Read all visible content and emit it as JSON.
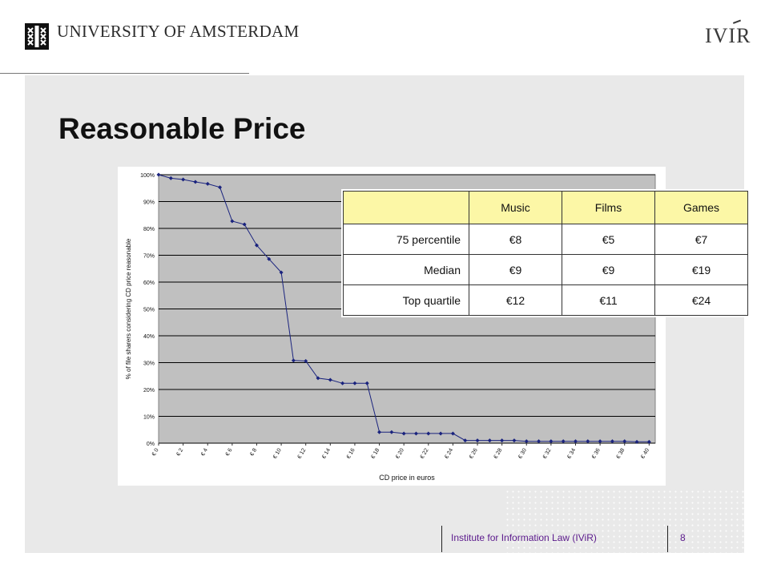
{
  "header": {
    "university_name": "UNIVERSITY OF AMSTERDAM",
    "institute_logo": "IVIR"
  },
  "slide": {
    "title": "Reasonable Price"
  },
  "chart_data": {
    "type": "line",
    "ylabel": "% of file sharers considering CD price reasonable",
    "xlabel": "CD price in euros",
    "y_ticks": [
      "0%",
      "10%",
      "20%",
      "30%",
      "40%",
      "50%",
      "60%",
      "70%",
      "80%",
      "90%",
      "100%"
    ],
    "x_ticks": [
      "€ 0",
      "€ 2",
      "€ 4",
      "€ 6",
      "€ 8",
      "€ 10",
      "€ 12",
      "€ 14",
      "€ 16",
      "€ 18",
      "€ 20",
      "€ 22",
      "€ 24",
      "€ 26",
      "€ 28",
      "€ 30",
      "€ 32",
      "€ 34",
      "€ 36",
      "€ 38",
      "€ 40"
    ],
    "ylim": [
      0,
      100
    ],
    "xlim": [
      0,
      40.5
    ],
    "grid": true,
    "colors": {
      "line": "#1a237e",
      "plot_bg": "#c0c0c0",
      "grid": "#000000"
    },
    "x": [
      0,
      1,
      2,
      3,
      4,
      5,
      6,
      7,
      8,
      9,
      10,
      11,
      12,
      13,
      14,
      15,
      16,
      17,
      18,
      19,
      20,
      21,
      22,
      23,
      24,
      25,
      26,
      27,
      28,
      29,
      30,
      31,
      32,
      33,
      34,
      35,
      36,
      37,
      38,
      39,
      40
    ],
    "values": [
      100,
      98.7,
      98.2,
      97.3,
      96.6,
      95.3,
      82.7,
      81.5,
      73.7,
      68.6,
      63.6,
      30.8,
      30.6,
      24.2,
      23.6,
      22.3,
      22.3,
      22.3,
      4.1,
      4.1,
      3.6,
      3.6,
      3.6,
      3.6,
      3.6,
      1.0,
      1.0,
      1.0,
      1.0,
      1.0,
      0.7,
      0.7,
      0.7,
      0.7,
      0.7,
      0.7,
      0.7,
      0.7,
      0.7,
      0.5,
      0.5
    ]
  },
  "price_table": {
    "headers": [
      "Music",
      "Films",
      "Games"
    ],
    "header_bg": "#fcf7a6",
    "rows": [
      {
        "label": "75 percentile",
        "values": [
          "€8",
          "€5",
          "€7"
        ]
      },
      {
        "label": "Median",
        "values": [
          "€9",
          "€9",
          "€19"
        ]
      },
      {
        "label": "Top quartile",
        "values": [
          "€12",
          "€11",
          "€24"
        ]
      }
    ]
  },
  "footer": {
    "institute": "Institute for Information Law (IViR)",
    "page_number": "8"
  }
}
